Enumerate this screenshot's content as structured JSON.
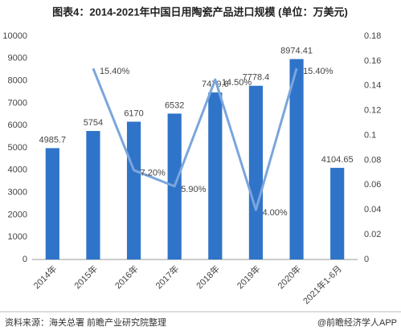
{
  "chart_data": {
    "type": "bar-line",
    "title": "图表4：2014-2021年中国日用陶瓷产品进口规模 (单位：万美元)",
    "categories": [
      "2014年",
      "2015年",
      "2016年",
      "2017年",
      "2018年",
      "2019年",
      "2020年",
      "2021年1-6月"
    ],
    "series": [
      {
        "type": "bar",
        "color": "#2f74c8",
        "values": [
          4985.7,
          5754,
          6170,
          6532,
          7479.6,
          7778.4,
          8974.41,
          4104.65
        ]
      },
      {
        "type": "line",
        "axis": "y2",
        "color": "#7aa6dc",
        "values": [
          null,
          0.154,
          0.072,
          0.059,
          0.145,
          0.04,
          0.154,
          null
        ],
        "value_labels": [
          null,
          "15.40%",
          "7.20%",
          "5.90%",
          "14.50%",
          "4.00%",
          "15.40%",
          null
        ]
      }
    ],
    "ylim": [
      0,
      10000
    ],
    "yticks": [
      0,
      1000,
      2000,
      3000,
      4000,
      5000,
      6000,
      7000,
      8000,
      9000,
      10000
    ],
    "y2lim": [
      0,
      0.18
    ],
    "y2ticks": [
      0,
      0.02,
      0.04,
      0.06,
      0.08,
      0.1,
      0.12,
      0.14,
      0.16,
      0.18
    ],
    "grid": false
  },
  "footer": {
    "source": "资料来源：海关总署 前瞻产业研究院整理",
    "brand": "@前瞻经济学人APP"
  }
}
